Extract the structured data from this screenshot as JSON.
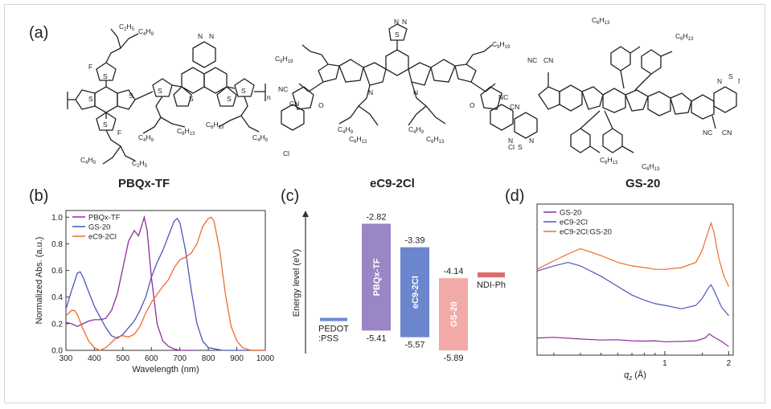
{
  "figure": {
    "panels": {
      "a": "(a)",
      "b": "(b)",
      "c": "(c)",
      "d": "(d)"
    },
    "molecules": [
      {
        "name": "PBQx-TF",
        "labels": [
          "C2H5",
          "C4H9",
          "F",
          "S",
          "N",
          "C6H13",
          "n"
        ]
      },
      {
        "name": "eC9-2Cl",
        "labels": [
          "C9H19",
          "C4H9",
          "C6H13",
          "CN",
          "NC",
          "O",
          "Cl",
          "N",
          "S"
        ]
      },
      {
        "name": "GS-20",
        "labels": [
          "C6H13",
          "NC",
          "CN",
          "N",
          "S"
        ]
      }
    ]
  },
  "chart_data": [
    {
      "type": "line",
      "panel": "(b)",
      "xlabel": "Wavelength (nm)",
      "ylabel": "Normalized Abs. (a.u.)",
      "xlim": [
        300,
        1000
      ],
      "ylim": [
        0,
        1.05
      ],
      "xticks": [
        300,
        400,
        500,
        600,
        700,
        800,
        900,
        1000
      ],
      "yticks": [
        "0.0",
        "0.2",
        "0.4",
        "0.6",
        "0.8",
        "1.0"
      ],
      "legend_position": "top-left",
      "series": [
        {
          "name": "PBQx-TF",
          "color": "#8e2c9c",
          "x": [
            300,
            320,
            340,
            360,
            380,
            400,
            420,
            440,
            460,
            480,
            500,
            520,
            540,
            555,
            565,
            575,
            585,
            600,
            620,
            640,
            660,
            680,
            700,
            720,
            750
          ],
          "y": [
            0.21,
            0.2,
            0.18,
            0.2,
            0.22,
            0.23,
            0.23,
            0.24,
            0.3,
            0.42,
            0.62,
            0.82,
            0.9,
            0.86,
            0.93,
            1.0,
            0.9,
            0.55,
            0.2,
            0.07,
            0.03,
            0.01,
            0.0,
            0.0,
            0.0
          ]
        },
        {
          "name": "GS-20",
          "color": "#4b57b8",
          "x": [
            300,
            320,
            340,
            350,
            360,
            380,
            400,
            420,
            440,
            460,
            480,
            500,
            520,
            540,
            560,
            580,
            600,
            620,
            640,
            660,
            680,
            690,
            700,
            720,
            740,
            760,
            780,
            800,
            850,
            900,
            1000
          ],
          "y": [
            0.31,
            0.45,
            0.58,
            0.59,
            0.55,
            0.44,
            0.33,
            0.25,
            0.17,
            0.11,
            0.09,
            0.12,
            0.17,
            0.22,
            0.3,
            0.4,
            0.55,
            0.66,
            0.75,
            0.86,
            0.97,
            0.99,
            0.96,
            0.75,
            0.45,
            0.2,
            0.07,
            0.02,
            0.0,
            0.0,
            0.0
          ]
        },
        {
          "name": "eC9-2Cl",
          "color": "#ef6a2e",
          "x": [
            300,
            320,
            330,
            340,
            360,
            380,
            400,
            420,
            440,
            460,
            480,
            500,
            520,
            540,
            560,
            580,
            600,
            620,
            640,
            660,
            680,
            700,
            720,
            740,
            760,
            780,
            800,
            810,
            820,
            840,
            860,
            880,
            900,
            920,
            950,
            1000
          ],
          "y": [
            0.26,
            0.3,
            0.3,
            0.27,
            0.16,
            0.07,
            0.02,
            0.0,
            0.02,
            0.06,
            0.1,
            0.11,
            0.1,
            0.12,
            0.18,
            0.28,
            0.36,
            0.42,
            0.48,
            0.53,
            0.62,
            0.68,
            0.7,
            0.73,
            0.8,
            0.93,
            0.99,
            1.0,
            0.97,
            0.75,
            0.42,
            0.18,
            0.07,
            0.02,
            0.0,
            0.0
          ]
        }
      ]
    },
    {
      "type": "bar",
      "panel": "(c)",
      "ylabel": "Energy level (eV)",
      "categories": [
        "PEDOT:PSS",
        "PBQx-TF",
        "eC9-2Cl",
        "GS-20",
        "NDI-Ph"
      ],
      "series": [
        {
          "name": "PEDOT :PSS",
          "lumo": null,
          "homo": null,
          "color": "#6b8bd6",
          "label_lines": [
            "PEDOT",
            ":PSS"
          ]
        },
        {
          "name": "PBQx-TF",
          "lumo": "-2.82",
          "homo": "-5.41",
          "color": "#9a86c4"
        },
        {
          "name": "eC9-2Cl",
          "lumo": "-3.39",
          "homo": "-5.57",
          "color": "#6b86cd"
        },
        {
          "name": "GS-20",
          "lumo": "-4.14",
          "homo": "-5.89",
          "color": "#f2aaa8"
        },
        {
          "name": "NDI-Ph",
          "lumo": null,
          "homo": null,
          "color": "#de6c6c"
        }
      ]
    },
    {
      "type": "line",
      "panel": "(d)",
      "xlabel": "q",
      "xlabel_sub": "z",
      "xlabel_unit": " (Å)",
      "xscale": "log",
      "xticks": [
        "1",
        "2"
      ],
      "legend_position": "top-left",
      "series": [
        {
          "name": "GS-20",
          "color": "#8e2c9c",
          "x": [
            0.25,
            0.3,
            0.4,
            0.5,
            0.6,
            0.7,
            0.8,
            0.9,
            1.0,
            1.2,
            1.4,
            1.55,
            1.62,
            1.7,
            1.85,
            2.0
          ],
          "y": [
            1.3,
            1.32,
            1.27,
            1.24,
            1.25,
            1.22,
            1.21,
            1.22,
            1.19,
            1.2,
            1.22,
            1.3,
            1.42,
            1.33,
            1.2,
            1.05
          ]
        },
        {
          "name": "eC9-2Cl",
          "color": "#4b57b8",
          "x": [
            0.25,
            0.3,
            0.35,
            0.4,
            0.5,
            0.6,
            0.7,
            0.8,
            0.9,
            1.0,
            1.2,
            1.4,
            1.5,
            1.6,
            1.65,
            1.7,
            1.85,
            2.0
          ],
          "y": [
            3.25,
            3.4,
            3.5,
            3.4,
            3.1,
            2.8,
            2.55,
            2.4,
            2.3,
            2.25,
            2.15,
            2.25,
            2.45,
            2.75,
            2.85,
            2.7,
            2.2,
            1.95
          ]
        },
        {
          "name": "eC9-2Cl:GS-20",
          "color": "#ef6a2e",
          "x": [
            0.25,
            0.3,
            0.35,
            0.4,
            0.45,
            0.5,
            0.6,
            0.7,
            0.8,
            0.9,
            1.0,
            1.2,
            1.4,
            1.5,
            1.6,
            1.65,
            1.7,
            1.8,
            1.9,
            2.0
          ],
          "y": [
            3.3,
            3.55,
            3.75,
            3.9,
            3.8,
            3.7,
            3.5,
            3.4,
            3.35,
            3.3,
            3.3,
            3.35,
            3.5,
            3.85,
            4.4,
            4.65,
            4.4,
            3.6,
            3.1,
            2.8
          ]
        }
      ]
    }
  ]
}
